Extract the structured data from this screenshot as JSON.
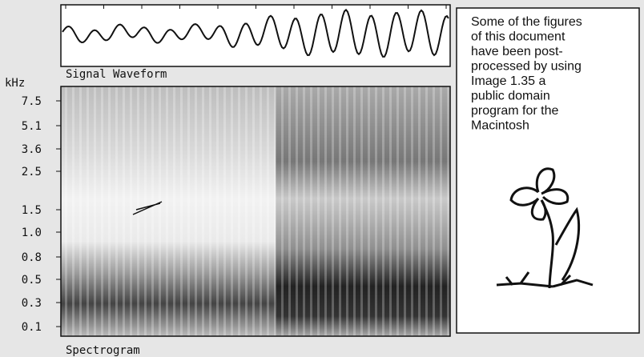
{
  "waveform": {
    "label": "Signal Waveform"
  },
  "spectrogram": {
    "label": "Spectrogram",
    "unit": "kHz",
    "ticks": [
      "7.5",
      "5.1",
      "3.6",
      "2.5",
      "1.5",
      "1.0",
      "0.8",
      "0.5",
      "0.3",
      "0.1"
    ]
  },
  "note": {
    "lines": [
      "Some of the figures",
      "of this document",
      "have been post-",
      "processed by using",
      "Image 1.35 a",
      "public domain",
      "program for the",
      "Macintosh"
    ]
  }
}
